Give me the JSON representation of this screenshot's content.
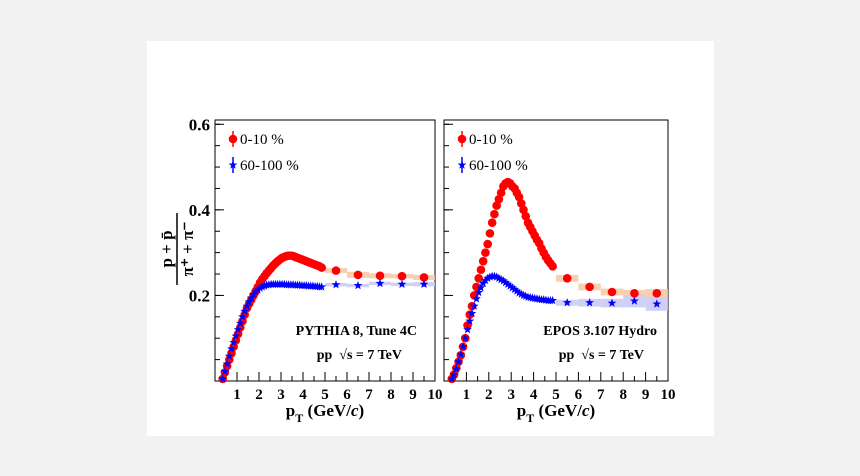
{
  "figure": {
    "y_axis_label": {
      "numerator": "p + p̄",
      "denominator": "π⁺ + π⁻"
    }
  },
  "chart_data": [
    {
      "type": "scatter",
      "panel": "left",
      "annotation": {
        "line1": "PYTHIA 8, Tune 4C",
        "line2": "pp  √s = 7 TeV"
      },
      "xlabel": "p_T (GeV/c)",
      "ylabel": "(p + p̄)/(π⁺ + π⁻)",
      "xlim": [
        0,
        10
      ],
      "ylim": [
        0,
        0.61
      ],
      "xticks": [
        1,
        2,
        3,
        4,
        5,
        6,
        7,
        8,
        9,
        10
      ],
      "yticks": [
        0.2,
        0.4,
        0.6
      ],
      "ytick_labels": [
        "0.2",
        "0.4",
        "0.6"
      ],
      "legend_position": "top-left",
      "series": [
        {
          "name": "0-10 %",
          "color": "#ff0000",
          "marker": "circle",
          "x": [
            0.35,
            0.45,
            0.55,
            0.65,
            0.75,
            0.85,
            0.95,
            1.05,
            1.15,
            1.25,
            1.35,
            1.45,
            1.55,
            1.65,
            1.75,
            1.85,
            1.95,
            2.05,
            2.15,
            2.25,
            2.35,
            2.45,
            2.55,
            2.65,
            2.75,
            2.85,
            2.95,
            3.05,
            3.15,
            3.25,
            3.35,
            3.45,
            3.55,
            3.65,
            3.75,
            3.85,
            3.95,
            4.05,
            4.15,
            4.25,
            4.35,
            4.45,
            4.55,
            4.65,
            4.75,
            4.85,
            5.5,
            6.5,
            7.5,
            8.5,
            9.5
          ],
          "y": [
            0.005,
            0.02,
            0.035,
            0.05,
            0.065,
            0.08,
            0.095,
            0.11,
            0.125,
            0.14,
            0.155,
            0.17,
            0.18,
            0.19,
            0.2,
            0.21,
            0.22,
            0.23,
            0.238,
            0.245,
            0.252,
            0.258,
            0.264,
            0.27,
            0.275,
            0.28,
            0.284,
            0.288,
            0.29,
            0.292,
            0.293,
            0.293,
            0.292,
            0.29,
            0.288,
            0.286,
            0.284,
            0.282,
            0.28,
            0.278,
            0.276,
            0.274,
            0.272,
            0.27,
            0.268,
            0.265,
            0.258,
            0.248,
            0.246,
            0.245,
            0.242
          ]
        },
        {
          "name": "60-100 %",
          "color": "#0000ff",
          "marker": "star",
          "x": [
            0.35,
            0.45,
            0.55,
            0.65,
            0.75,
            0.85,
            0.95,
            1.05,
            1.15,
            1.25,
            1.35,
            1.45,
            1.55,
            1.65,
            1.75,
            1.85,
            1.95,
            2.05,
            2.15,
            2.25,
            2.35,
            2.45,
            2.55,
            2.65,
            2.75,
            2.85,
            2.95,
            3.05,
            3.15,
            3.25,
            3.35,
            3.45,
            3.55,
            3.65,
            3.75,
            3.85,
            3.95,
            4.05,
            4.15,
            4.25,
            4.35,
            4.45,
            4.55,
            4.65,
            4.75,
            4.85,
            5.5,
            6.5,
            7.5,
            8.5,
            9.5
          ],
          "y": [
            0.005,
            0.022,
            0.04,
            0.058,
            0.075,
            0.09,
            0.105,
            0.12,
            0.135,
            0.15,
            0.163,
            0.175,
            0.185,
            0.194,
            0.202,
            0.208,
            0.213,
            0.217,
            0.22,
            0.222,
            0.224,
            0.225,
            0.226,
            0.226,
            0.226,
            0.226,
            0.226,
            0.226,
            0.226,
            0.225,
            0.225,
            0.225,
            0.225,
            0.224,
            0.224,
            0.224,
            0.223,
            0.223,
            0.223,
            0.222,
            0.222,
            0.222,
            0.221,
            0.221,
            0.22,
            0.22,
            0.225,
            0.223,
            0.228,
            0.226,
            0.226
          ]
        }
      ],
      "systematic_bands": [
        {
          "series": "0-10 %",
          "color": "#f5c8a3",
          "x": [
            5.5,
            6.5,
            7.5,
            8.5,
            9.5
          ],
          "y_low": [
            0.252,
            0.241,
            0.24,
            0.24,
            0.236
          ],
          "y_high": [
            0.264,
            0.255,
            0.252,
            0.25,
            0.248
          ]
        },
        {
          "series": "60-100 %",
          "color": "#c8c8f5",
          "x": [
            5.5,
            6.5,
            7.5,
            8.5,
            9.5
          ],
          "y_low": [
            0.221,
            0.219,
            0.224,
            0.222,
            0.221
          ],
          "y_high": [
            0.229,
            0.227,
            0.232,
            0.23,
            0.231
          ]
        }
      ]
    },
    {
      "type": "scatter",
      "panel": "right",
      "annotation": {
        "line1": "EPOS 3.107 Hydro",
        "line2": "pp  √s = 7 TeV"
      },
      "xlabel": "p_T (GeV/c)",
      "ylabel": "(p + p̄)/(π⁺ + π⁻)",
      "xlim": [
        0,
        10
      ],
      "ylim": [
        0,
        0.61
      ],
      "xticks": [
        1,
        2,
        3,
        4,
        5,
        6,
        7,
        8,
        9,
        10
      ],
      "yticks": [
        0.2,
        0.4,
        0.6
      ],
      "legend_position": "top-left",
      "series": [
        {
          "name": "0-10 %",
          "color": "#ff0000",
          "marker": "circle",
          "x": [
            0.35,
            0.45,
            0.55,
            0.65,
            0.75,
            0.85,
            0.95,
            1.05,
            1.15,
            1.25,
            1.35,
            1.45,
            1.55,
            1.65,
            1.75,
            1.85,
            1.95,
            2.05,
            2.15,
            2.25,
            2.35,
            2.45,
            2.55,
            2.65,
            2.75,
            2.85,
            2.95,
            3.05,
            3.15,
            3.25,
            3.35,
            3.45,
            3.55,
            3.65,
            3.75,
            3.85,
            3.95,
            4.05,
            4.15,
            4.25,
            4.35,
            4.45,
            4.55,
            4.65,
            4.75,
            4.85,
            5.5,
            6.5,
            7.5,
            8.5,
            9.5
          ],
          "y": [
            0.005,
            0.015,
            0.03,
            0.045,
            0.06,
            0.08,
            0.1,
            0.13,
            0.155,
            0.175,
            0.2,
            0.22,
            0.24,
            0.26,
            0.28,
            0.3,
            0.32,
            0.345,
            0.37,
            0.39,
            0.41,
            0.425,
            0.44,
            0.455,
            0.462,
            0.465,
            0.462,
            0.455,
            0.45,
            0.44,
            0.43,
            0.415,
            0.4,
            0.385,
            0.37,
            0.36,
            0.35,
            0.34,
            0.33,
            0.322,
            0.31,
            0.3,
            0.29,
            0.282,
            0.275,
            0.268,
            0.24,
            0.22,
            0.208,
            0.205,
            0.205
          ]
        },
        {
          "name": "60-100 %",
          "color": "#0000ff",
          "marker": "star",
          "x": [
            0.35,
            0.45,
            0.55,
            0.65,
            0.75,
            0.85,
            0.95,
            1.05,
            1.15,
            1.25,
            1.35,
            1.45,
            1.55,
            1.65,
            1.75,
            1.85,
            1.95,
            2.05,
            2.15,
            2.25,
            2.35,
            2.45,
            2.55,
            2.65,
            2.75,
            2.85,
            2.95,
            3.05,
            3.15,
            3.25,
            3.35,
            3.45,
            3.55,
            3.65,
            3.75,
            3.85,
            3.95,
            4.05,
            4.15,
            4.25,
            4.35,
            4.45,
            4.55,
            4.65,
            4.75,
            4.85,
            5.5,
            6.5,
            7.5,
            8.5,
            9.5
          ],
          "y": [
            0.005,
            0.015,
            0.028,
            0.045,
            0.062,
            0.08,
            0.1,
            0.12,
            0.14,
            0.158,
            0.175,
            0.192,
            0.207,
            0.218,
            0.228,
            0.235,
            0.24,
            0.243,
            0.245,
            0.245,
            0.243,
            0.24,
            0.237,
            0.234,
            0.23,
            0.226,
            0.222,
            0.218,
            0.214,
            0.21,
            0.206,
            0.203,
            0.2,
            0.198,
            0.196,
            0.195,
            0.194,
            0.193,
            0.192,
            0.191,
            0.19,
            0.19,
            0.189,
            0.188,
            0.188,
            0.188,
            0.183,
            0.183,
            0.182,
            0.187,
            0.18
          ]
        }
      ],
      "systematic_bands": [
        {
          "series": "0-10 %",
          "color": "#f5c8a3",
          "x": [
            5.5,
            6.5,
            7.5,
            8.5,
            9.5
          ],
          "y_low": [
            0.232,
            0.212,
            0.2,
            0.197,
            0.195
          ],
          "y_high": [
            0.248,
            0.228,
            0.216,
            0.213,
            0.215
          ]
        },
        {
          "series": "60-100 %",
          "color": "#c8c8f5",
          "x": [
            5.5,
            6.5,
            7.5,
            8.5,
            9.5
          ],
          "y_low": [
            0.176,
            0.174,
            0.172,
            0.172,
            0.164
          ],
          "y_high": [
            0.19,
            0.192,
            0.192,
            0.2,
            0.196
          ]
        }
      ]
    }
  ]
}
